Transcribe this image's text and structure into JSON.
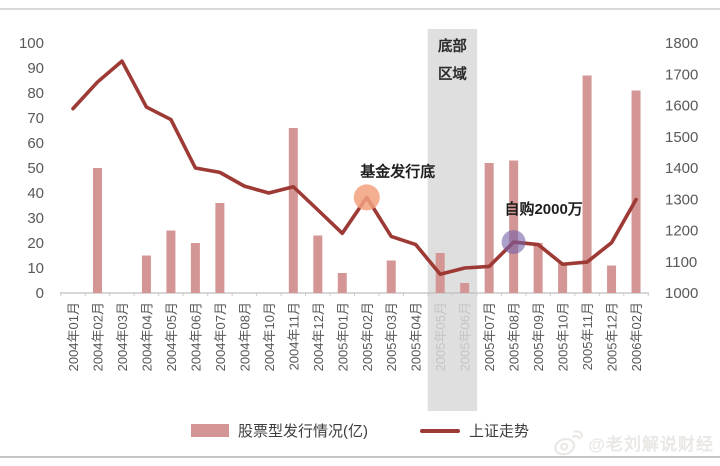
{
  "chart_data": {
    "type": "combo",
    "categories": [
      "2004年01月",
      "2004年02月",
      "2004年03月",
      "2004年04月",
      "2004年05月",
      "2004年06月",
      "2004年07月",
      "2004年08月",
      "2004年10月",
      "2004年11月",
      "2004年12月",
      "2005年01月",
      "2005年02月",
      "2005年03月",
      "2005年04月",
      "2005年05月",
      "2005年06月",
      "2005年07月",
      "2005年08月",
      "2005年09月",
      "2005年10月",
      "2005年11月",
      "2005年12月",
      "2006年02月"
    ],
    "series": [
      {
        "name": "股票型发行情况(亿)",
        "type": "bar",
        "axis": "left",
        "color": "#D49694",
        "values": [
          0,
          50,
          0,
          15,
          25,
          20,
          36,
          0,
          0,
          66,
          23,
          8,
          0,
          13,
          0,
          16,
          4,
          52,
          53,
          20,
          12,
          87,
          11,
          81
        ]
      },
      {
        "name": "上证走势",
        "type": "line",
        "axis": "right",
        "color": "#9E3A35",
        "values": [
          1590,
          1675,
          1742,
          1595,
          1555,
          1400,
          1386,
          1342,
          1320,
          1340,
          1266,
          1191,
          1306,
          1181,
          1155,
          1060,
          1080,
          1085,
          1163,
          1155,
          1092,
          1099,
          1161,
          1299
        ]
      }
    ],
    "left_axis": {
      "min": 0,
      "max": 100,
      "step": 10,
      "ticks": [
        0,
        10,
        20,
        30,
        40,
        50,
        60,
        70,
        80,
        90,
        100
      ]
    },
    "right_axis": {
      "min": 1000,
      "max": 1800,
      "step": 100,
      "ticks": [
        1000,
        1100,
        1200,
        1300,
        1400,
        1500,
        1600,
        1700,
        1800
      ]
    },
    "grid": "off",
    "legend_position": "bottom",
    "highlight_band": {
      "label_lines": [
        "底部",
        "区域"
      ],
      "from_index": 15,
      "to_index": 16,
      "from_category": "2005年05月",
      "to_category": "2005年06月",
      "color": "#D9D9D9"
    },
    "annotations": [
      {
        "text": "基金发行底",
        "category_index": 12,
        "category": "2005年02月",
        "marker_color": "#F2A17E"
      },
      {
        "text": "自购2000万",
        "category_index": 18,
        "category": "2005年08月",
        "marker_color": "#7460A8"
      }
    ]
  },
  "watermark": {
    "text": "@老刘解说财经",
    "icon": "weibo-logo-icon"
  }
}
